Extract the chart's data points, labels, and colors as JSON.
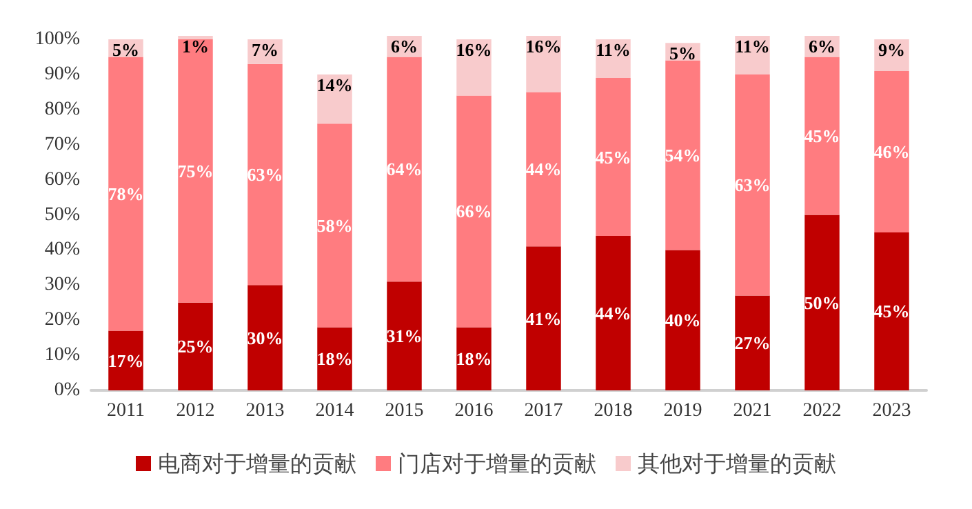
{
  "chart_data": {
    "type": "bar",
    "stacked": true,
    "categories": [
      "2011",
      "2012",
      "2013",
      "2014",
      "2015",
      "2016",
      "2017",
      "2018",
      "2019",
      "2021",
      "2022",
      "2023"
    ],
    "series": [
      {
        "name": "电商对于增量的贡献",
        "color": "#c00000",
        "values": [
          17,
          25,
          30,
          18,
          31,
          18,
          41,
          44,
          40,
          27,
          50,
          45
        ],
        "value_labels": [
          "17%",
          "25%",
          "30%",
          "18%",
          "31%",
          "18%",
          "41%",
          "44%",
          "40%",
          "27%",
          "50%",
          "45%"
        ]
      },
      {
        "name": "门店对于增量的贡献",
        "color": "#ff7c80",
        "values": [
          78,
          75,
          63,
          58,
          64,
          66,
          44,
          45,
          54,
          63,
          45,
          46
        ],
        "value_labels": [
          "78%",
          "75%",
          "63%",
          "58%",
          "64%",
          "66%",
          "44%",
          "45%",
          "54%",
          "63%",
          "45%",
          "46%"
        ]
      },
      {
        "name": "其他对于增量的贡献",
        "color": "#f8cbcc",
        "values": [
          5,
          1,
          7,
          14,
          6,
          16,
          16,
          11,
          5,
          11,
          6,
          9
        ],
        "value_labels": [
          "5%",
          "1%",
          "7%",
          "14%",
          "6%",
          "16%",
          "16%",
          "11%",
          "5%",
          "11%",
          "6%",
          "9%"
        ]
      }
    ],
    "ylim": [
      0,
      101
    ],
    "yticks": [
      {
        "value": 0,
        "label": "0%"
      },
      {
        "value": 10,
        "label": "10%"
      },
      {
        "value": 20,
        "label": "20%"
      },
      {
        "value": 30,
        "label": "30%"
      },
      {
        "value": 40,
        "label": "40%"
      },
      {
        "value": 50,
        "label": "50%"
      },
      {
        "value": 60,
        "label": "60%"
      },
      {
        "value": 70,
        "label": "70%"
      },
      {
        "value": 80,
        "label": "80%"
      },
      {
        "value": 90,
        "label": "90%"
      },
      {
        "value": 100,
        "label": "100%"
      }
    ],
    "grid": false,
    "legend": "bottom"
  }
}
